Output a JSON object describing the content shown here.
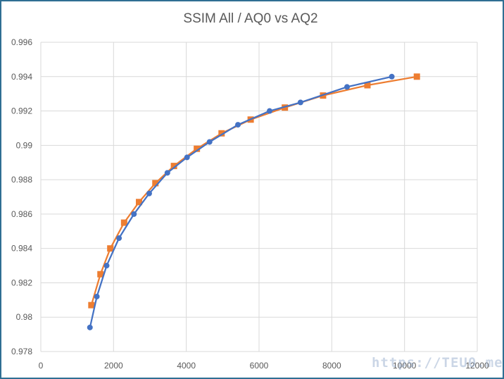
{
  "chart_data": {
    "type": "line",
    "title": "SSIM All / AQ0 vs AQ2",
    "xlabel": "",
    "ylabel": "",
    "xlim": [
      0,
      12000
    ],
    "ylim": [
      0.978,
      0.996
    ],
    "x_ticks": [
      "0",
      "2000",
      "4000",
      "6000",
      "8000",
      "10000",
      "12000"
    ],
    "y_ticks": [
      "0.978",
      "0.98",
      "0.982",
      "0.984",
      "0.986",
      "0.988",
      "0.99",
      "0.992",
      "0.994",
      "0.996"
    ],
    "grid": true,
    "legend": "none",
    "series": [
      {
        "color": "#4472c4",
        "marker": "circle",
        "points": [
          [
            1350,
            0.9794
          ],
          [
            1540,
            0.9812
          ],
          [
            1810,
            0.983
          ],
          [
            2150,
            0.9846
          ],
          [
            2560,
            0.986
          ],
          [
            2980,
            0.9872
          ],
          [
            3480,
            0.9884
          ],
          [
            4020,
            0.9893
          ],
          [
            4640,
            0.9902
          ],
          [
            5420,
            0.9912
          ],
          [
            6290,
            0.992
          ],
          [
            7140,
            0.9925
          ],
          [
            8420,
            0.9934
          ],
          [
            9650,
            0.994
          ]
        ]
      },
      {
        "color": "#ed7d31",
        "marker": "square",
        "points": [
          [
            1390,
            0.9807
          ],
          [
            1640,
            0.9825
          ],
          [
            1910,
            0.984
          ],
          [
            2290,
            0.9855
          ],
          [
            2700,
            0.9867
          ],
          [
            3150,
            0.9878
          ],
          [
            3660,
            0.9888
          ],
          [
            4290,
            0.9898
          ],
          [
            4970,
            0.9907
          ],
          [
            5770,
            0.9915
          ],
          [
            6710,
            0.9922
          ],
          [
            7760,
            0.9929
          ],
          [
            8980,
            0.9935
          ],
          [
            10340,
            0.994
          ]
        ]
      }
    ]
  },
  "watermark": "https://TEU0.me"
}
